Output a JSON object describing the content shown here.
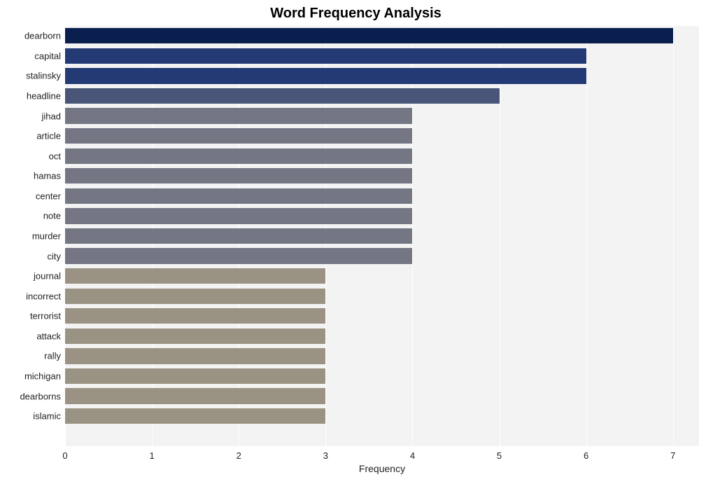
{
  "chart": {
    "type": "bar-horizontal",
    "title": "Word Frequency Analysis",
    "title_fontsize": 20,
    "title_fontweight": "bold",
    "title_color": "#000000",
    "xlabel": "Frequency",
    "xlabel_fontsize": 14,
    "background_color": "#ffffff",
    "plot_band_color": "#f3f3f3",
    "grid_line_color": "#ffffff",
    "xlim": [
      0,
      7.3
    ],
    "xticks": [
      0,
      1,
      2,
      3,
      4,
      5,
      6,
      7
    ],
    "bar_height_ratio": 0.78,
    "y_label_fontsize": 13,
    "x_tick_fontsize": 13,
    "words": [
      {
        "label": "dearborn",
        "value": 7,
        "color": "#0a1f4d"
      },
      {
        "label": "capital",
        "value": 6,
        "color": "#233a74"
      },
      {
        "label": "stalinsky",
        "value": 6,
        "color": "#233a74"
      },
      {
        "label": "headline",
        "value": 5,
        "color": "#4a5677"
      },
      {
        "label": "jihad",
        "value": 4,
        "color": "#747684"
      },
      {
        "label": "article",
        "value": 4,
        "color": "#747684"
      },
      {
        "label": "oct",
        "value": 4,
        "color": "#747684"
      },
      {
        "label": "hamas",
        "value": 4,
        "color": "#747684"
      },
      {
        "label": "center",
        "value": 4,
        "color": "#747684"
      },
      {
        "label": "note",
        "value": 4,
        "color": "#747684"
      },
      {
        "label": "murder",
        "value": 4,
        "color": "#747684"
      },
      {
        "label": "city",
        "value": 4,
        "color": "#747684"
      },
      {
        "label": "journal",
        "value": 3,
        "color": "#9a9383"
      },
      {
        "label": "incorrect",
        "value": 3,
        "color": "#9a9383"
      },
      {
        "label": "terrorist",
        "value": 3,
        "color": "#9a9383"
      },
      {
        "label": "attack",
        "value": 3,
        "color": "#9a9383"
      },
      {
        "label": "rally",
        "value": 3,
        "color": "#9a9383"
      },
      {
        "label": "michigan",
        "value": 3,
        "color": "#9a9383"
      },
      {
        "label": "dearborns",
        "value": 3,
        "color": "#9a9383"
      },
      {
        "label": "islamic",
        "value": 3,
        "color": "#9a9383"
      }
    ]
  }
}
